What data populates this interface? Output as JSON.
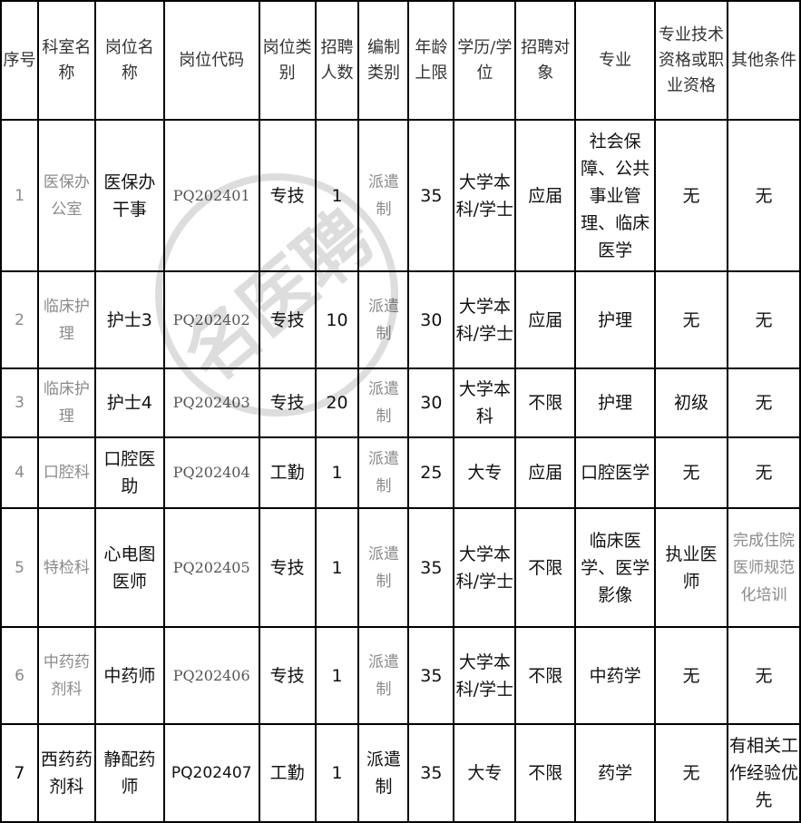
{
  "watermark": "名医聘",
  "headers": [
    "序号",
    "科室名称",
    "岗位名称",
    "岗位代码",
    "岗位类别",
    "招聘人数",
    "编制类别",
    "年龄上限",
    "学历/学位",
    "招聘对象",
    "专业",
    "专业技术资格或职业资格",
    "其他条件"
  ],
  "rows": [
    [
      "1",
      "医保办公室",
      "医保办干事",
      "PQ202401",
      "专技",
      "1",
      "派遣制",
      "35",
      "大学本科/学士",
      "应届",
      "社会保障、公共事业管理、临床医学",
      "无",
      "无"
    ],
    [
      "2",
      "临床护理",
      "护士3",
      "PQ202402",
      "专技",
      "10",
      "派遣制",
      "30",
      "大学本科/学士",
      "应届",
      "护理",
      "无",
      "无"
    ],
    [
      "3",
      "临床护理",
      "护士4",
      "PQ202403",
      "专技",
      "20",
      "派遣制",
      "30",
      "大学本科",
      "不限",
      "护理",
      "初级",
      "无"
    ],
    [
      "4",
      "口腔科",
      "口腔医助",
      "PQ202404",
      "工勤",
      "1",
      "派遣制",
      "25",
      "大专",
      "应届",
      "口腔医学",
      "无",
      "无"
    ],
    [
      "5",
      "特检科",
      "心电图医师",
      "PQ202405",
      "专技",
      "1",
      "派遣制",
      "35",
      "大学本科/学士",
      "不限",
      "临床医学、医学影像",
      "执业医师",
      "完成住院医师规范化培训"
    ],
    [
      "6",
      "中药药剂科",
      "中药师",
      "PQ202406",
      "专技",
      "1",
      "派遣制",
      "35",
      "大学本科/学士",
      "不限",
      "中药学",
      "无",
      "无"
    ],
    [
      "7",
      "西药药剂科",
      "静配药师",
      "PQ202407",
      "工勤",
      "1",
      "派遣制",
      "35",
      "大专",
      "不限",
      "药学",
      "无",
      "有相关工作经验优先"
    ]
  ]
}
